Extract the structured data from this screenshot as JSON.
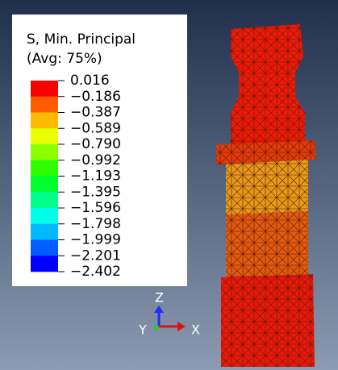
{
  "legend": {
    "title": "S, Min. Principal",
    "subtitle": "(Avg: 75%)",
    "labels": [
      "0.016",
      "−0.186",
      "−0.387",
      "−0.589",
      "−0.790",
      "−0.992",
      "−1.193",
      "−1.395",
      "−1.596",
      "−1.798",
      "−1.999",
      "−2.201",
      "−2.402"
    ],
    "colors": [
      "#ff0000",
      "#ff5d00",
      "#ffb900",
      "#e8ff00",
      "#8bff00",
      "#2eff00",
      "#00ff2e",
      "#00ff8b",
      "#00ffe8",
      "#00b9ff",
      "#005dff",
      "#0000ff"
    ]
  },
  "triad": {
    "z": "Z",
    "y": "Y",
    "x": "X"
  }
}
